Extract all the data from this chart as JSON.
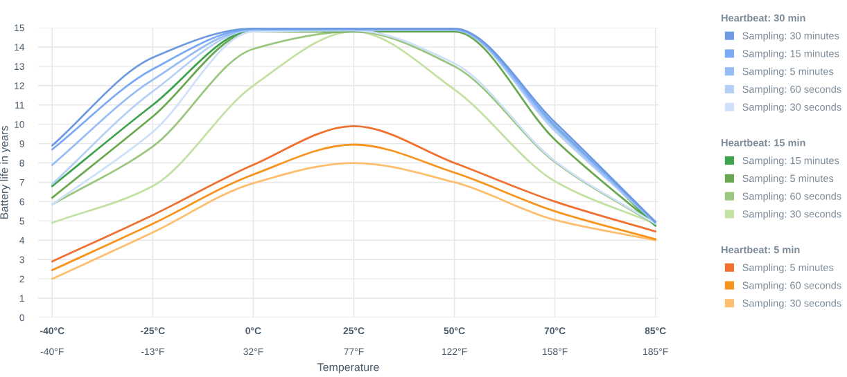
{
  "chart_data": {
    "type": "line",
    "xlabel": "Temperature",
    "ylabel": "Battery life in years",
    "categories": [
      "-40°C\n-40°F",
      "-25°C\n-13°F",
      "0°C\n32°F",
      "25°C\n77°F",
      "50°C\n122°F",
      "70°C\n158°F",
      "85°C\n185°F"
    ],
    "ylim": [
      0,
      15
    ],
    "yticks": [
      0,
      1,
      2,
      3,
      4,
      5,
      6,
      7,
      8,
      9,
      10,
      11,
      12,
      13,
      14,
      15
    ],
    "grid": true,
    "legend": "right",
    "marker": "none",
    "line_style": "solid",
    "annotations": [
      "Heartbeat: 30 min",
      "Heartbeat: 15 min",
      "Heartbeat: 5 min"
    ],
    "series": [
      {
        "name": "Sampling: 30 minutes",
        "color": "#6e9be0",
        "values": [
          8.9,
          13.45,
          14.95,
          14.95,
          14.95,
          10.1,
          4.95
        ]
      },
      {
        "name": "Sampling: 15 minutes",
        "color": "#7aaaf5",
        "values": [
          8.7,
          12.85,
          14.93,
          14.93,
          14.93,
          9.95,
          4.95
        ]
      },
      {
        "name": "Sampling: 5 minutes",
        "color": "#98bcf5",
        "values": [
          7.9,
          12.3,
          14.9,
          14.9,
          14.9,
          9.8,
          4.9
        ]
      },
      {
        "name": "Sampling: 60 seconds",
        "color": "#b5cff7",
        "values": [
          6.9,
          11.7,
          14.88,
          14.88,
          14.88,
          9.65,
          4.9
        ]
      },
      {
        "name": "Sampling: 30 seconds",
        "color": "#cfe0fa",
        "values": [
          5.85,
          9.6,
          14.8,
          14.85,
          13.15,
          8.1,
          4.85
        ]
      },
      {
        "name": "Sampling: 15 minutes",
        "color": "#3fa34d",
        "values": [
          6.8,
          11.0,
          14.85,
          14.85,
          14.85,
          9.9,
          4.75
        ]
      },
      {
        "name": "Sampling: 5 minutes",
        "color": "#6aa84f",
        "values": [
          6.2,
          10.4,
          14.8,
          14.8,
          14.8,
          9.2,
          4.75
        ]
      },
      {
        "name": "Sampling: 60 seconds",
        "color": "#9bc67f",
        "values": [
          5.85,
          8.85,
          13.9,
          14.8,
          13.0,
          8.05,
          4.8
        ]
      },
      {
        "name": "Sampling: 30 seconds",
        "color": "#c4e1a4",
        "values": [
          4.9,
          6.8,
          12.0,
          14.8,
          11.8,
          7.05,
          4.85
        ]
      },
      {
        "name": "Sampling: 5 minutes",
        "color": "#f07030",
        "values": [
          2.9,
          5.3,
          7.9,
          9.9,
          8.0,
          6.0,
          4.45
        ]
      },
      {
        "name": "Sampling: 60 seconds",
        "color": "#f7941d",
        "values": [
          2.45,
          4.85,
          7.4,
          8.95,
          7.5,
          5.5,
          4.05
        ]
      },
      {
        "name": "Sampling: 30 seconds",
        "color": "#fdbe6e",
        "values": [
          2.0,
          4.4,
          6.95,
          8.0,
          7.0,
          5.05,
          4.0
        ]
      }
    ]
  }
}
